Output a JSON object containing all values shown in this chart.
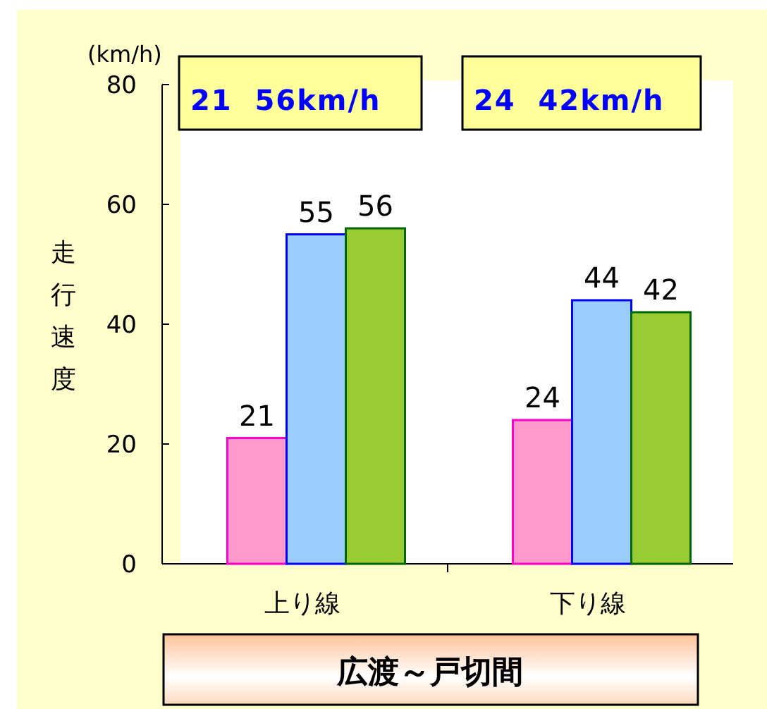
{
  "chart_data": {
    "type": "bar",
    "title": "広渡～戸切間",
    "ylabel": "走行速度",
    "annotations": [
      "(km/h)",
      "21  56km/h",
      "24  42km/h"
    ],
    "categories": [
      "上り線",
      "下り線"
    ],
    "series": [
      {
        "color": "#ff99cc",
        "values": [
          21,
          24
        ]
      },
      {
        "color": "#99ccff",
        "values": [
          55,
          44
        ]
      },
      {
        "color": "#99cc33",
        "values": [
          56,
          42
        ]
      }
    ],
    "ylim": [
      0,
      80
    ],
    "yticks": [
      0,
      20,
      40,
      60,
      80
    ],
    "data_labels": true,
    "grid": false
  }
}
